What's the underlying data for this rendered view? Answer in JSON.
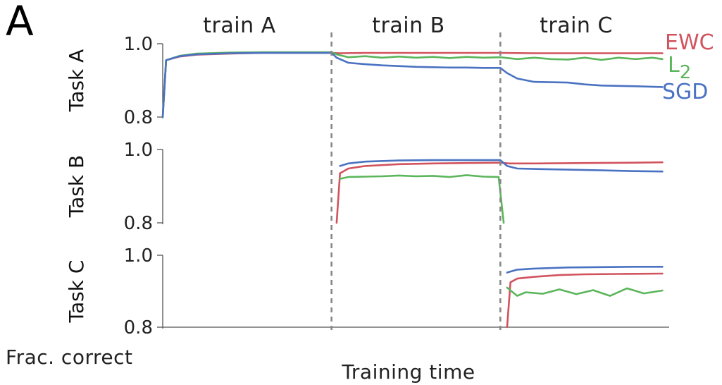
{
  "figure": {
    "panel_letter": "A",
    "y_caption": "Frac. correct",
    "x_caption": "Training time",
    "phases": [
      "train A",
      "train B",
      "train C"
    ],
    "legend": [
      {
        "label": "EWC",
        "color": "#d1535e"
      },
      {
        "label": "L",
        "sub": "2",
        "color": "#5bb55b"
      },
      {
        "label": "SGD",
        "color": "#4a72c2"
      }
    ]
  },
  "chart_data": [
    {
      "type": "line",
      "ylabel": "Task A",
      "ylim": [
        0.8,
        1.0
      ],
      "yticks": [
        "1.0",
        "0.8"
      ],
      "x_unit": "training time (task phases 0–3)",
      "series": [
        {
          "name": "EWC",
          "color": "#d1535e",
          "points": [
            [
              0.0,
              0.8
            ],
            [
              0.02,
              0.955
            ],
            [
              0.1,
              0.965
            ],
            [
              0.2,
              0.97
            ],
            [
              0.4,
              0.973
            ],
            [
              0.6,
              0.975
            ],
            [
              0.8,
              0.975
            ],
            [
              1.0,
              0.975
            ],
            [
              1.05,
              0.974
            ],
            [
              1.2,
              0.975
            ],
            [
              1.5,
              0.975
            ],
            [
              1.8,
              0.975
            ],
            [
              2.0,
              0.975
            ],
            [
              2.2,
              0.974
            ],
            [
              2.5,
              0.974
            ],
            [
              2.8,
              0.974
            ],
            [
              2.96,
              0.974
            ]
          ]
        },
        {
          "name": "L2",
          "color": "#5bb55b",
          "points": [
            [
              0.0,
              0.8
            ],
            [
              0.02,
              0.955
            ],
            [
              0.1,
              0.967
            ],
            [
              0.2,
              0.973
            ],
            [
              0.4,
              0.976
            ],
            [
              0.6,
              0.977
            ],
            [
              0.8,
              0.977
            ],
            [
              1.0,
              0.977
            ],
            [
              1.03,
              0.971
            ],
            [
              1.1,
              0.963
            ],
            [
              1.2,
              0.966
            ],
            [
              1.3,
              0.962
            ],
            [
              1.4,
              0.965
            ],
            [
              1.5,
              0.962
            ],
            [
              1.6,
              0.964
            ],
            [
              1.7,
              0.961
            ],
            [
              1.8,
              0.964
            ],
            [
              1.9,
              0.962
            ],
            [
              2.0,
              0.963
            ],
            [
              2.1,
              0.958
            ],
            [
              2.2,
              0.962
            ],
            [
              2.3,
              0.958
            ],
            [
              2.4,
              0.957
            ],
            [
              2.5,
              0.962
            ],
            [
              2.6,
              0.956
            ],
            [
              2.7,
              0.962
            ],
            [
              2.8,
              0.958
            ],
            [
              2.9,
              0.962
            ],
            [
              2.96,
              0.958
            ]
          ]
        },
        {
          "name": "SGD",
          "color": "#4a72c2",
          "points": [
            [
              0.0,
              0.8
            ],
            [
              0.02,
              0.955
            ],
            [
              0.1,
              0.966
            ],
            [
              0.2,
              0.971
            ],
            [
              0.4,
              0.974
            ],
            [
              0.6,
              0.975
            ],
            [
              0.8,
              0.975
            ],
            [
              1.0,
              0.975
            ],
            [
              1.03,
              0.962
            ],
            [
              1.1,
              0.948
            ],
            [
              1.2,
              0.944
            ],
            [
              1.3,
              0.941
            ],
            [
              1.4,
              0.939
            ],
            [
              1.5,
              0.937
            ],
            [
              1.6,
              0.936
            ],
            [
              1.7,
              0.935
            ],
            [
              1.8,
              0.935
            ],
            [
              1.9,
              0.934
            ],
            [
              2.0,
              0.934
            ],
            [
              2.04,
              0.92
            ],
            [
              2.1,
              0.905
            ],
            [
              2.2,
              0.896
            ],
            [
              2.4,
              0.894
            ],
            [
              2.5,
              0.889
            ],
            [
              2.6,
              0.886
            ],
            [
              2.8,
              0.884
            ],
            [
              2.96,
              0.882
            ]
          ]
        }
      ]
    },
    {
      "type": "line",
      "ylabel": "Task B",
      "ylim": [
        0.8,
        1.0
      ],
      "yticks": [
        "1.0",
        "0.8"
      ],
      "x_unit": "training time (task phases 0–3)",
      "series": [
        {
          "name": "EWC",
          "color": "#d1535e",
          "points": [
            [
              1.03,
              0.8
            ],
            [
              1.05,
              0.935
            ],
            [
              1.1,
              0.948
            ],
            [
              1.2,
              0.955
            ],
            [
              1.4,
              0.96
            ],
            [
              1.6,
              0.962
            ],
            [
              1.8,
              0.963
            ],
            [
              2.0,
              0.964
            ],
            [
              2.05,
              0.962
            ],
            [
              2.2,
              0.962
            ],
            [
              2.5,
              0.963
            ],
            [
              2.8,
              0.964
            ],
            [
              2.96,
              0.965
            ]
          ]
        },
        {
          "name": "L2",
          "color": "#5bb55b",
          "points": [
            [
              1.05,
              0.92
            ],
            [
              1.1,
              0.925
            ],
            [
              1.2,
              0.926
            ],
            [
              1.3,
              0.927
            ],
            [
              1.4,
              0.929
            ],
            [
              1.5,
              0.927
            ],
            [
              1.6,
              0.928
            ],
            [
              1.7,
              0.925
            ],
            [
              1.8,
              0.93
            ],
            [
              1.9,
              0.926
            ],
            [
              1.99,
              0.925
            ],
            [
              2.02,
              0.8
            ]
          ]
        },
        {
          "name": "SGD",
          "color": "#4a72c2",
          "points": [
            [
              1.05,
              0.955
            ],
            [
              1.1,
              0.962
            ],
            [
              1.2,
              0.967
            ],
            [
              1.4,
              0.97
            ],
            [
              1.6,
              0.971
            ],
            [
              1.8,
              0.971
            ],
            [
              2.0,
              0.971
            ],
            [
              2.04,
              0.955
            ],
            [
              2.1,
              0.948
            ],
            [
              2.2,
              0.947
            ],
            [
              2.4,
              0.945
            ],
            [
              2.6,
              0.943
            ],
            [
              2.8,
              0.941
            ],
            [
              2.96,
              0.94
            ]
          ]
        }
      ]
    },
    {
      "type": "line",
      "ylabel": "Task C",
      "ylim": [
        0.8,
        1.0
      ],
      "yticks": [
        "1.0",
        "0.8"
      ],
      "x_unit": "training time (task phases 0–3)",
      "series": [
        {
          "name": "EWC",
          "color": "#d1535e",
          "points": [
            [
              2.04,
              0.8
            ],
            [
              2.06,
              0.925
            ],
            [
              2.1,
              0.935
            ],
            [
              2.2,
              0.94
            ],
            [
              2.35,
              0.945
            ],
            [
              2.5,
              0.947
            ],
            [
              2.7,
              0.948
            ],
            [
              2.96,
              0.949
            ]
          ]
        },
        {
          "name": "L2",
          "color": "#5bb55b",
          "points": [
            [
              2.04,
              0.91
            ],
            [
              2.1,
              0.887
            ],
            [
              2.15,
              0.897
            ],
            [
              2.25,
              0.893
            ],
            [
              2.35,
              0.905
            ],
            [
              2.45,
              0.892
            ],
            [
              2.55,
              0.903
            ],
            [
              2.65,
              0.887
            ],
            [
              2.75,
              0.908
            ],
            [
              2.85,
              0.894
            ],
            [
              2.96,
              0.902
            ]
          ]
        },
        {
          "name": "SGD",
          "color": "#4a72c2",
          "points": [
            [
              2.04,
              0.952
            ],
            [
              2.1,
              0.96
            ],
            [
              2.2,
              0.963
            ],
            [
              2.4,
              0.966
            ],
            [
              2.6,
              0.967
            ],
            [
              2.8,
              0.968
            ],
            [
              2.96,
              0.968
            ]
          ]
        }
      ]
    }
  ]
}
